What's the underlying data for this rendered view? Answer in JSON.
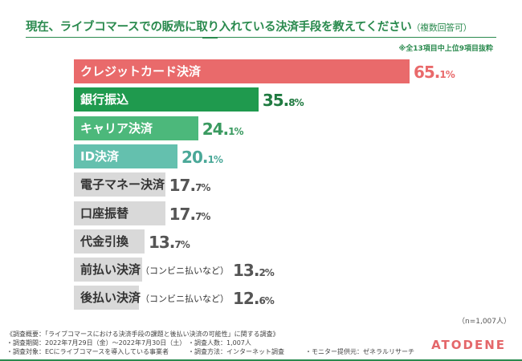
{
  "chart_data": {
    "type": "bar",
    "orientation": "horizontal",
    "title": "現在、ライブコマースでの販売に取り入れている決済手段を教えてください",
    "title_suffix": "（複数回答可）",
    "note": "※全13項目中上位9項目抜粋",
    "unit": "%",
    "xlim": [
      0,
      100
    ],
    "grid": false,
    "categories": [
      {
        "label": "クレジットカード決済",
        "sub": ""
      },
      {
        "label": "銀行振込",
        "sub": ""
      },
      {
        "label": "キャリア決済",
        "sub": ""
      },
      {
        "label": "ID決済",
        "sub": ""
      },
      {
        "label": "電子マネー決済",
        "sub": ""
      },
      {
        "label": "口座振替",
        "sub": ""
      },
      {
        "label": "代金引換",
        "sub": ""
      },
      {
        "label": "前払い決済",
        "sub": "（コンビニ払いなど）"
      },
      {
        "label": "後払い決済",
        "sub": "（コンビニ払いなど）"
      }
    ],
    "values": [
      65.1,
      35.8,
      24.1,
      20.1,
      17.7,
      17.7,
      13.7,
      13.2,
      12.6
    ],
    "colors": [
      "#e96a6b",
      "#1f9a4e",
      "#4cb87b",
      "#64c0ae",
      "#d9d9d9",
      "#d9d9d9",
      "#d9d9d9",
      "#d9d9d9",
      "#d9d9d9"
    ],
    "label_colors": [
      "#ffffff",
      "#ffffff",
      "#ffffff",
      "#ffffff",
      "#333333",
      "#333333",
      "#333333",
      "#333333",
      "#333333"
    ],
    "value_colors": [
      "#e96a6b",
      "#1f7a40",
      "#3a9a60",
      "#4aa898",
      "#555555",
      "#555555",
      "#555555",
      "#555555",
      "#555555"
    ],
    "sample": "（n=1,007人）"
  },
  "footer": {
    "overview": "《調査概要：「ライブコマースにおける決済手段の課題と後払い決済の可能性」に関する調査》",
    "period": "・調査期間：2022年7月29日（金）～2022年7月30日（土）",
    "count": "・調査人数：1,007人",
    "target": "・調査対象：ECにライブコマースを導入している事業者",
    "method": "・調査方法：インターネット調査",
    "monitor": "・モニター提供元：ゼネラルリサーチ"
  },
  "logo": "ATODENE"
}
